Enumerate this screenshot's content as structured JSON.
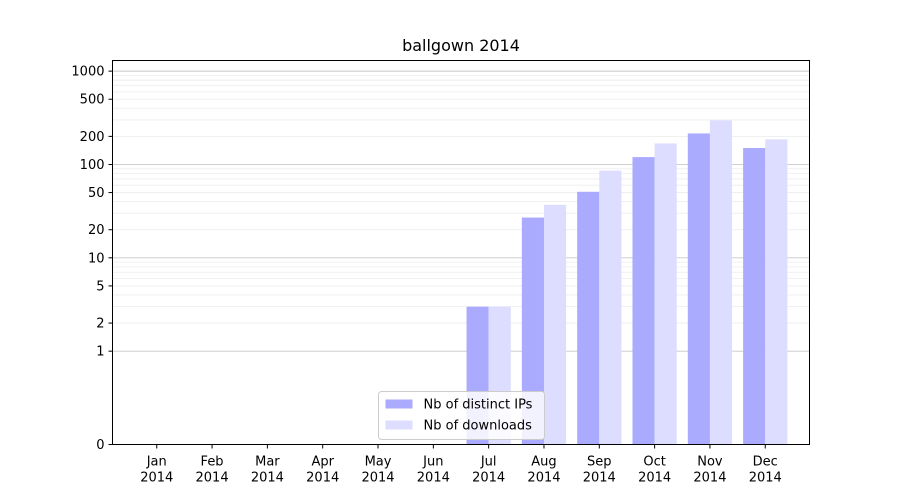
{
  "chart_data": {
    "type": "bar",
    "title": "ballgown 2014",
    "xlabel": "",
    "ylabel": "",
    "categories": [
      "Jan\n2014",
      "Feb\n2014",
      "Mar\n2014",
      "Apr\n2014",
      "May\n2014",
      "Jun\n2014",
      "Jul\n2014",
      "Aug\n2014",
      "Sep\n2014",
      "Oct\n2014",
      "Nov\n2014",
      "Dec\n2014"
    ],
    "series": [
      {
        "name": "Nb of distinct IPs",
        "color": "#aaaaff",
        "values": [
          0,
          0,
          0,
          0,
          0,
          0,
          3,
          27,
          51,
          120,
          215,
          150
        ]
      },
      {
        "name": "Nb of downloads",
        "color": "#ddddff",
        "values": [
          0,
          0,
          0,
          0,
          0,
          0,
          3,
          37,
          86,
          168,
          297,
          186
        ]
      }
    ],
    "yscale": "symlog",
    "ylim": [
      0,
      1300
    ],
    "yticks": [
      0,
      1,
      2,
      5,
      10,
      20,
      50,
      100,
      200,
      500,
      1000
    ],
    "ytick_labels": [
      "0",
      "1",
      "2",
      "5",
      "10",
      "20",
      "50",
      "100",
      "200",
      "500",
      "1000"
    ],
    "grid": true,
    "legend_position": "lower center"
  }
}
